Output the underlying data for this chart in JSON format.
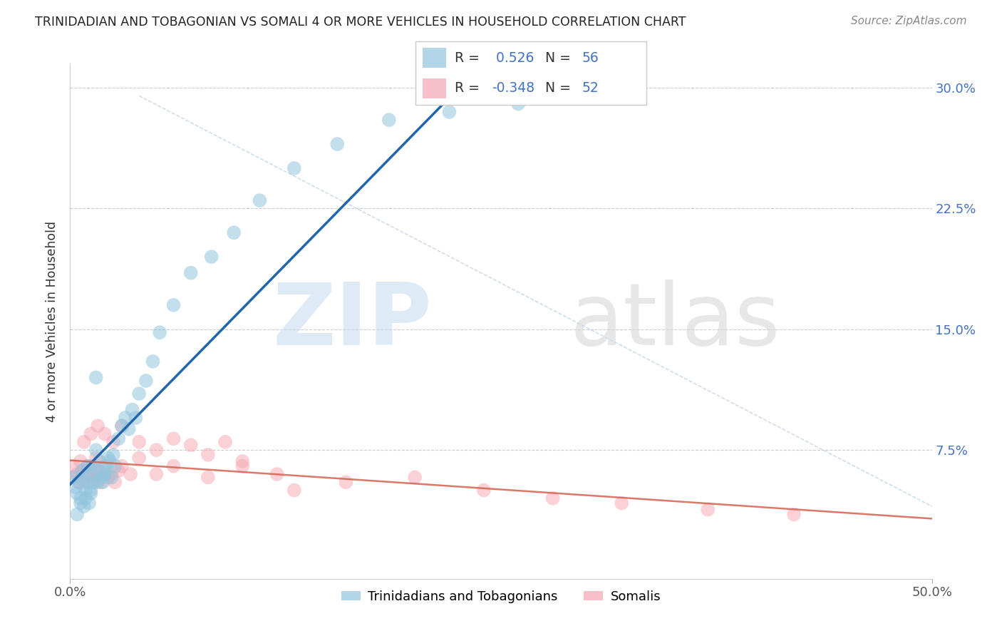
{
  "title": "TRINIDADIAN AND TOBAGONIAN VS SOMALI 4 OR MORE VEHICLES IN HOUSEHOLD CORRELATION CHART",
  "source": "Source: ZipAtlas.com",
  "ylabel": "4 or more Vehicles in Household",
  "xlim": [
    0.0,
    0.5
  ],
  "ylim": [
    -0.005,
    0.315
  ],
  "ytick_values": [
    0.075,
    0.15,
    0.225,
    0.3
  ],
  "ytick_labels": [
    "7.5%",
    "15.0%",
    "22.5%",
    "30.0%"
  ],
  "xtick_values": [
    0.0,
    0.5
  ],
  "xtick_labels": [
    "0.0%",
    "50.0%"
  ],
  "r_trini": 0.526,
  "n_trini": 56,
  "r_somali": -0.348,
  "n_somali": 52,
  "legend_label_trini": "Trinidadians and Tobagonians",
  "legend_label_somali": "Somalis",
  "color_trini": "#92c5de",
  "color_somali": "#f4a5b0",
  "color_trini_line": "#2166ac",
  "color_somali_line": "#d6604d",
  "color_diag": "#b8cfe8",
  "background_color": "#ffffff",
  "grid_color": "#cccccc",
  "title_color": "#222222",
  "source_color": "#888888",
  "ylabel_color": "#333333",
  "tick_color_x": "#555555",
  "tick_color_y_right": "#4472c4",
  "trini_scatter_x": [
    0.002,
    0.003,
    0.004,
    0.005,
    0.006,
    0.007,
    0.008,
    0.008,
    0.009,
    0.01,
    0.01,
    0.011,
    0.012,
    0.012,
    0.013,
    0.014,
    0.015,
    0.015,
    0.016,
    0.017,
    0.018,
    0.019,
    0.02,
    0.021,
    0.022,
    0.023,
    0.024,
    0.025,
    0.026,
    0.028,
    0.03,
    0.032,
    0.034,
    0.036,
    0.038,
    0.04,
    0.044,
    0.048,
    0.052,
    0.06,
    0.07,
    0.082,
    0.095,
    0.11,
    0.13,
    0.155,
    0.185,
    0.22,
    0.26,
    0.3,
    0.004,
    0.006,
    0.009,
    0.012,
    0.016,
    0.02
  ],
  "trini_scatter_y": [
    0.058,
    0.052,
    0.048,
    0.055,
    0.045,
    0.062,
    0.04,
    0.058,
    0.05,
    0.055,
    0.065,
    0.042,
    0.06,
    0.048,
    0.065,
    0.055,
    0.075,
    0.12,
    0.062,
    0.068,
    0.058,
    0.055,
    0.06,
    0.065,
    0.07,
    0.068,
    0.058,
    0.072,
    0.065,
    0.082,
    0.09,
    0.095,
    0.088,
    0.1,
    0.095,
    0.11,
    0.118,
    0.13,
    0.148,
    0.165,
    0.185,
    0.195,
    0.21,
    0.23,
    0.25,
    0.265,
    0.28,
    0.285,
    0.29,
    0.295,
    0.035,
    0.042,
    0.045,
    0.05,
    0.055,
    0.06
  ],
  "somali_scatter_x": [
    0.002,
    0.003,
    0.004,
    0.005,
    0.006,
    0.007,
    0.008,
    0.009,
    0.01,
    0.011,
    0.012,
    0.013,
    0.014,
    0.015,
    0.016,
    0.017,
    0.018,
    0.019,
    0.02,
    0.022,
    0.024,
    0.026,
    0.028,
    0.03,
    0.035,
    0.04,
    0.05,
    0.06,
    0.08,
    0.1,
    0.13,
    0.16,
    0.2,
    0.24,
    0.28,
    0.32,
    0.37,
    0.42,
    0.008,
    0.012,
    0.016,
    0.02,
    0.025,
    0.03,
    0.04,
    0.05,
    0.06,
    0.07,
    0.08,
    0.09,
    0.1,
    0.12
  ],
  "somali_scatter_y": [
    0.065,
    0.058,
    0.06,
    0.055,
    0.068,
    0.062,
    0.055,
    0.06,
    0.065,
    0.058,
    0.062,
    0.055,
    0.06,
    0.07,
    0.058,
    0.062,
    0.055,
    0.06,
    0.065,
    0.058,
    0.06,
    0.055,
    0.062,
    0.065,
    0.06,
    0.07,
    0.06,
    0.065,
    0.058,
    0.065,
    0.05,
    0.055,
    0.058,
    0.05,
    0.045,
    0.042,
    0.038,
    0.035,
    0.08,
    0.085,
    0.09,
    0.085,
    0.08,
    0.09,
    0.08,
    0.075,
    0.082,
    0.078,
    0.072,
    0.08,
    0.068,
    0.06
  ]
}
